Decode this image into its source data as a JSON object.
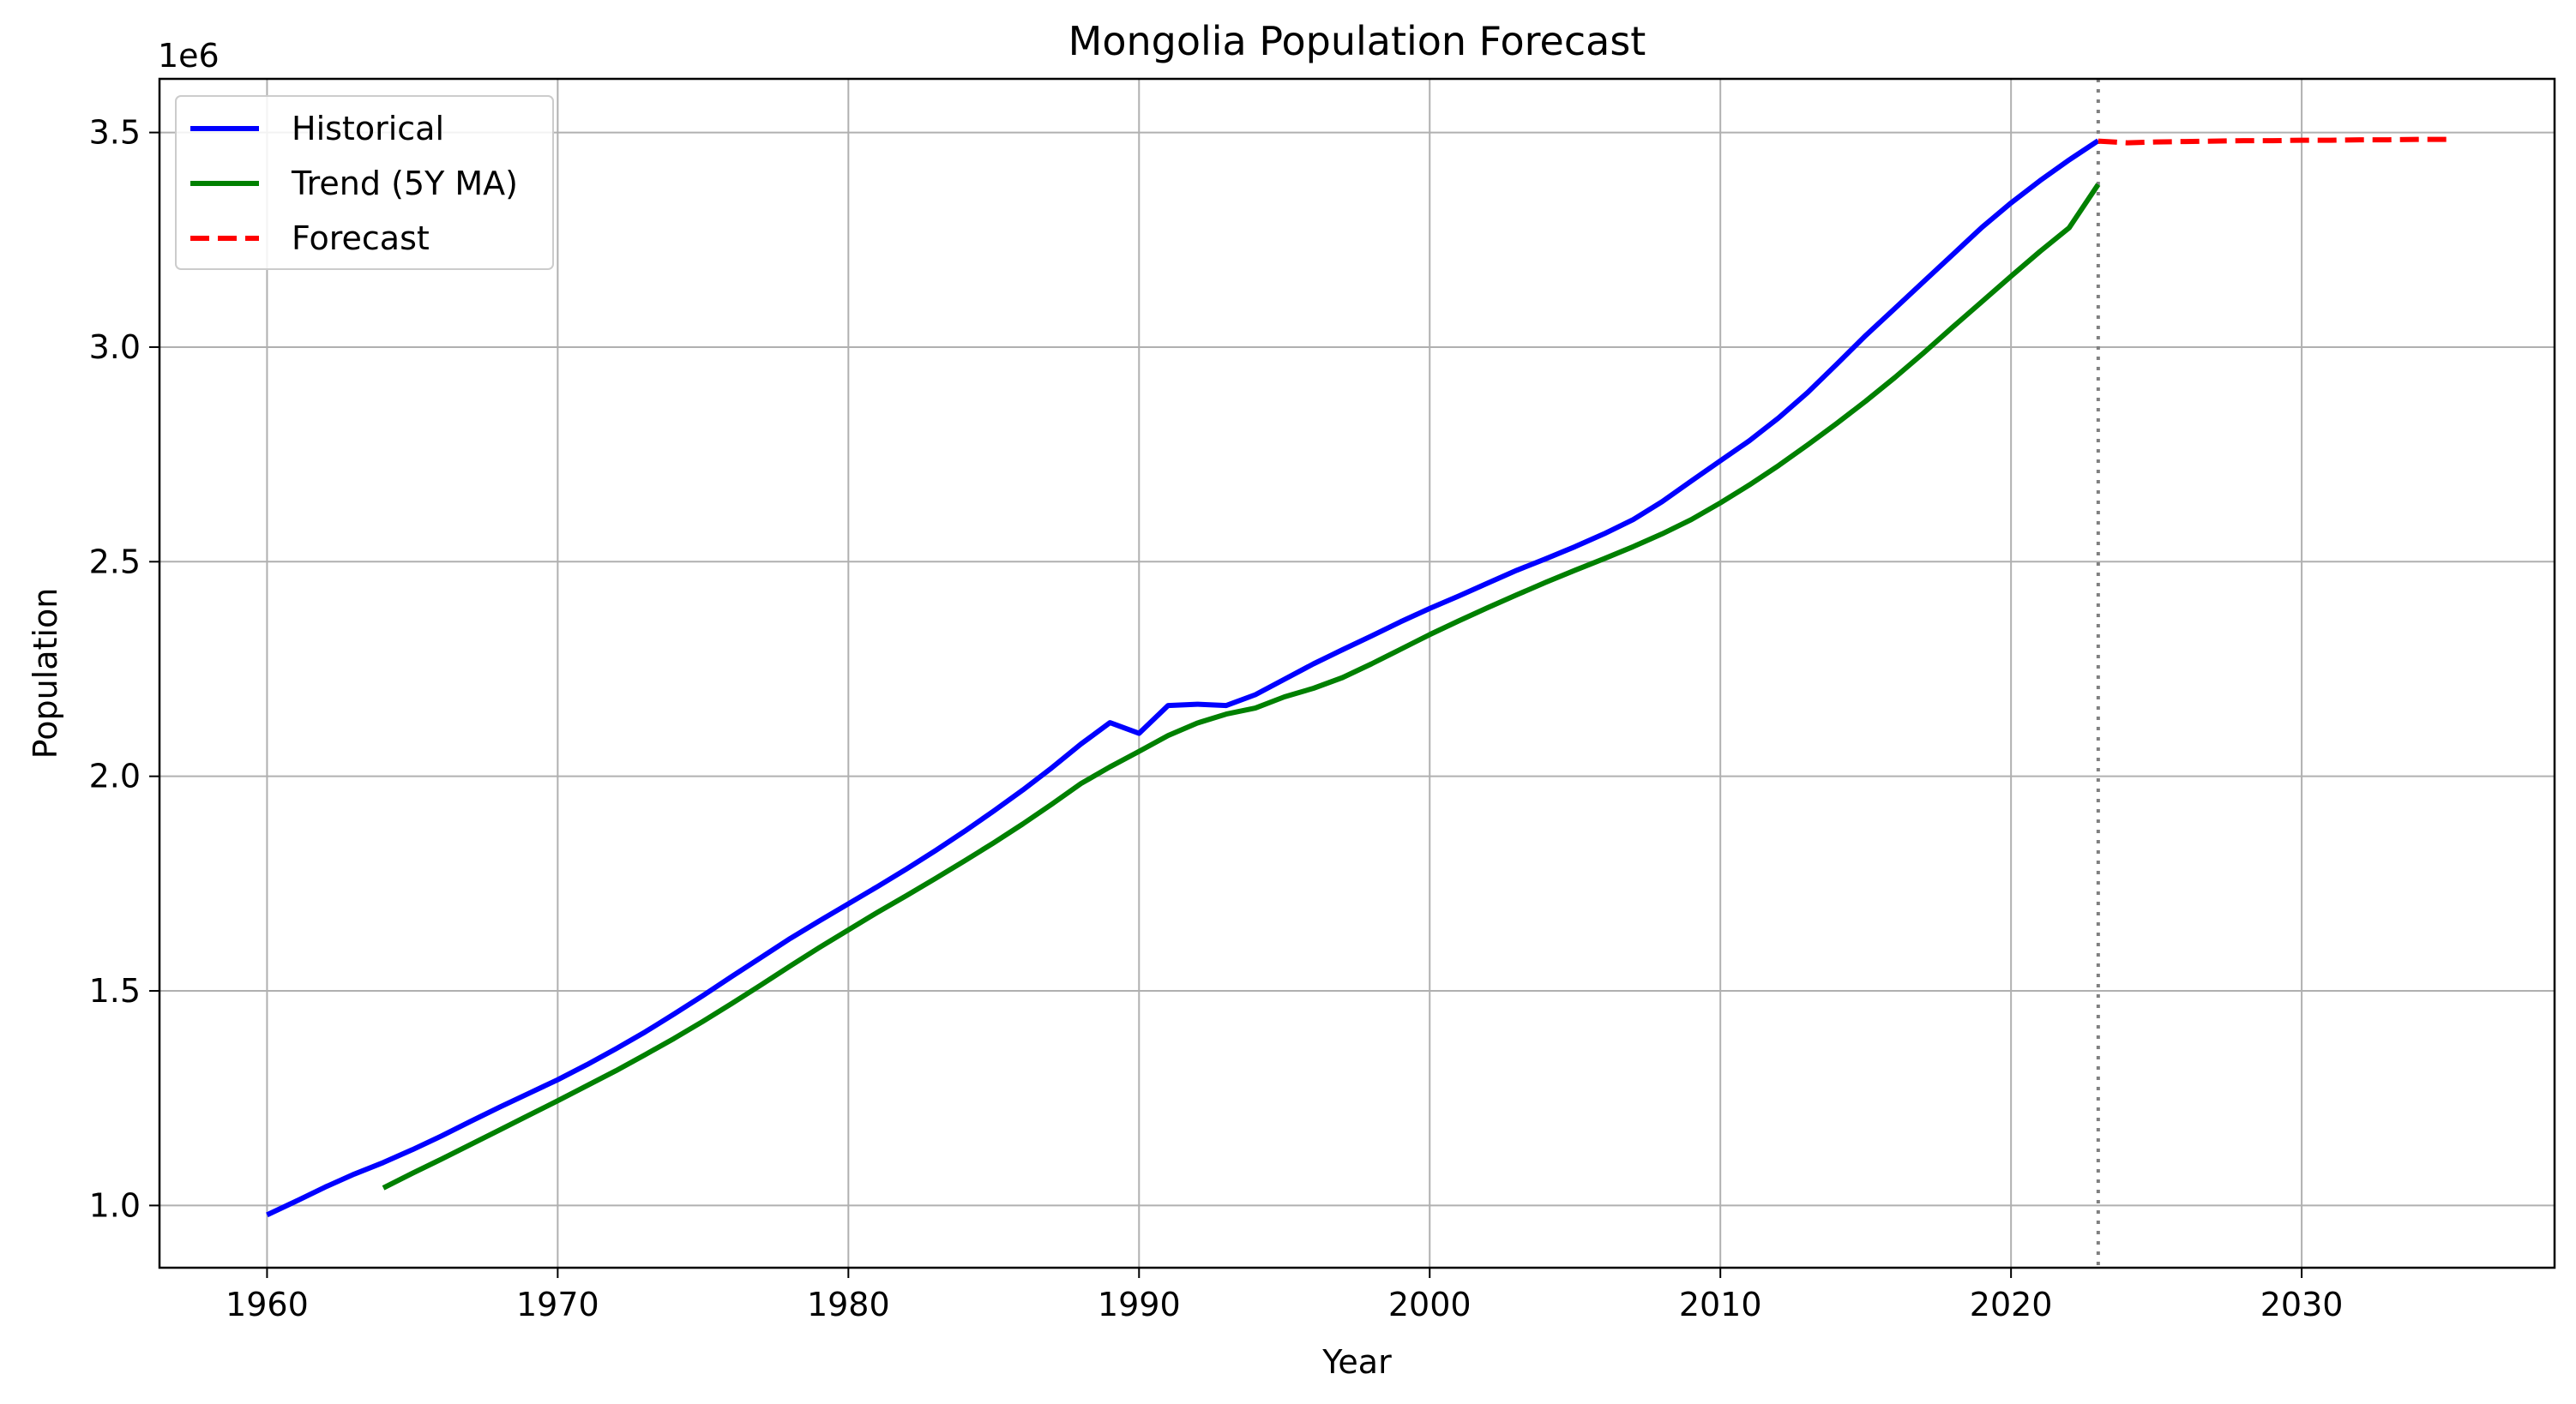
{
  "chart_data": {
    "type": "line",
    "title": "Mongolia Population Forecast",
    "xlabel": "Year",
    "ylabel": "Population",
    "y_offset_label": "1e6",
    "xlim": [
      1956.3,
      2038.7
    ],
    "ylim": [
      0.855,
      3.625
    ],
    "x_ticks": [
      1960,
      1970,
      1980,
      1990,
      2000,
      2010,
      2020,
      2030
    ],
    "x_tick_labels": [
      "1960",
      "1970",
      "1980",
      "1990",
      "2000",
      "2010",
      "2020",
      "2030"
    ],
    "y_ticks": [
      1.0,
      1.5,
      2.0,
      2.5,
      3.0,
      3.5
    ],
    "y_tick_labels": [
      "1.0",
      "1.5",
      "2.0",
      "2.5",
      "3.0",
      "3.5"
    ],
    "grid": true,
    "legend_position": "top-left",
    "forecast_start_marker_x": 2023,
    "series": [
      {
        "name": "Historical",
        "color": "#0000ff",
        "style": "solid",
        "x": [
          1960,
          1961,
          1962,
          1963,
          1964,
          1965,
          1966,
          1967,
          1968,
          1969,
          1970,
          1971,
          1972,
          1973,
          1974,
          1975,
          1976,
          1977,
          1978,
          1979,
          1980,
          1981,
          1982,
          1983,
          1984,
          1985,
          1986,
          1987,
          1988,
          1989,
          1990,
          1991,
          1992,
          1993,
          1994,
          1995,
          1996,
          1997,
          1998,
          1999,
          2000,
          2001,
          2002,
          2003,
          2004,
          2005,
          2006,
          2007,
          2008,
          2009,
          2010,
          2011,
          2012,
          2013,
          2014,
          2015,
          2016,
          2017,
          2018,
          2019,
          2020,
          2021,
          2022,
          2023
        ],
        "y": [
          0.978,
          1.01,
          1.043,
          1.073,
          1.1,
          1.13,
          1.162,
          1.196,
          1.229,
          1.261,
          1.293,
          1.328,
          1.365,
          1.404,
          1.446,
          1.489,
          1.534,
          1.578,
          1.622,
          1.663,
          1.703,
          1.743,
          1.784,
          1.827,
          1.872,
          1.919,
          1.968,
          2.02,
          2.075,
          2.125,
          2.1,
          2.165,
          2.168,
          2.165,
          2.19,
          2.226,
          2.262,
          2.295,
          2.327,
          2.36,
          2.391,
          2.42,
          2.45,
          2.48,
          2.507,
          2.535,
          2.565,
          2.598,
          2.64,
          2.688,
          2.735,
          2.782,
          2.835,
          2.894,
          2.96,
          3.027,
          3.09,
          3.153,
          3.216,
          3.279,
          3.336,
          3.388,
          3.436,
          3.481
        ]
      },
      {
        "name": "Trend (5Y MA)",
        "color": "#008000",
        "style": "solid",
        "x": [
          1964,
          1965,
          1966,
          1967,
          1968,
          1969,
          1970,
          1971,
          1972,
          1973,
          1974,
          1975,
          1976,
          1977,
          1978,
          1979,
          1980,
          1981,
          1982,
          1983,
          1984,
          1985,
          1986,
          1987,
          1988,
          1989,
          1990,
          1991,
          1992,
          1993,
          1994,
          1995,
          1996,
          1997,
          1998,
          1999,
          2000,
          2001,
          2002,
          2003,
          2004,
          2005,
          2006,
          2007,
          2008,
          2009,
          2010,
          2011,
          2012,
          2013,
          2014,
          2015,
          2016,
          2017,
          2018,
          2019,
          2020,
          2021,
          2022,
          2023
        ],
        "y": [
          1.041,
          1.075,
          1.108,
          1.142,
          1.176,
          1.21,
          1.244,
          1.279,
          1.314,
          1.351,
          1.389,
          1.429,
          1.471,
          1.514,
          1.558,
          1.601,
          1.642,
          1.683,
          1.722,
          1.762,
          1.803,
          1.845,
          1.889,
          1.935,
          1.983,
          2.022,
          2.058,
          2.095,
          2.124,
          2.145,
          2.159,
          2.185,
          2.205,
          2.23,
          2.262,
          2.296,
          2.33,
          2.362,
          2.393,
          2.423,
          2.452,
          2.48,
          2.507,
          2.535,
          2.565,
          2.598,
          2.637,
          2.679,
          2.724,
          2.772,
          2.822,
          2.874,
          2.929,
          2.987,
          3.047,
          3.106,
          3.165,
          3.223,
          3.278,
          3.379
        ]
      },
      {
        "name": "Forecast",
        "color": "#ff0000",
        "style": "dashed",
        "x": [
          2023,
          2024,
          2025,
          2026,
          2027,
          2028,
          2029,
          2030,
          2031,
          2032,
          2033,
          2034,
          2035
        ],
        "y": [
          3.48,
          3.476,
          3.478,
          3.479,
          3.48,
          3.481,
          3.481,
          3.482,
          3.482,
          3.483,
          3.483,
          3.484,
          3.484
        ]
      }
    ]
  }
}
